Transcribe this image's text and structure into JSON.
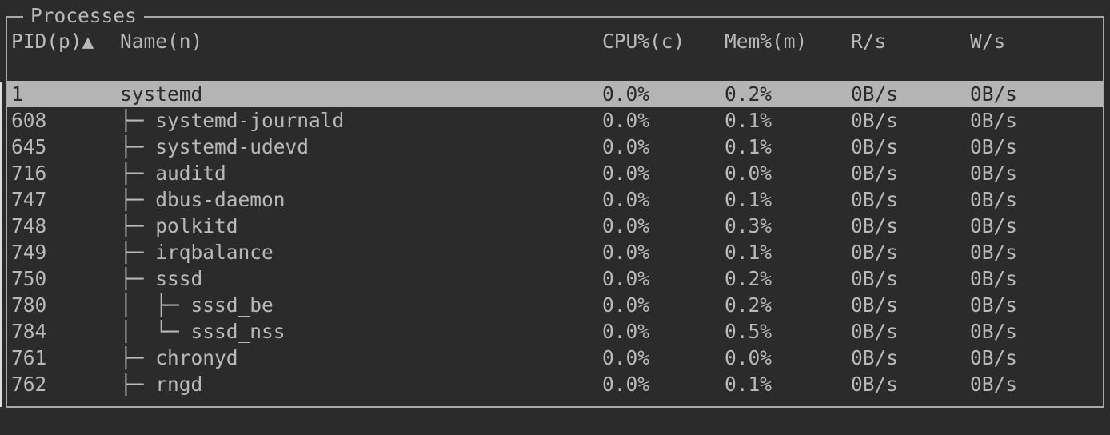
{
  "panel": {
    "title": "Processes"
  },
  "table": {
    "columns": [
      {
        "key": "pid",
        "label": "PID(p)",
        "sort_arrow": "▲"
      },
      {
        "key": "name",
        "label": "Name(n)"
      },
      {
        "key": "cpu",
        "label": "CPU%(c)"
      },
      {
        "key": "mem",
        "label": "Mem%(m)"
      },
      {
        "key": "read",
        "label": "R/s"
      },
      {
        "key": "write",
        "label": "W/s"
      }
    ],
    "rows": [
      {
        "pid": "1",
        "tree_prefix": "",
        "name": "systemd",
        "cpu": "0.0%",
        "mem": "0.2%",
        "read": "0B/s",
        "write": "0B/s",
        "selected": true
      },
      {
        "pid": "608",
        "tree_prefix": "├─ ",
        "name": "systemd-journald",
        "cpu": "0.0%",
        "mem": "0.1%",
        "read": "0B/s",
        "write": "0B/s",
        "selected": false
      },
      {
        "pid": "645",
        "tree_prefix": "├─ ",
        "name": "systemd-udevd",
        "cpu": "0.0%",
        "mem": "0.1%",
        "read": "0B/s",
        "write": "0B/s",
        "selected": false
      },
      {
        "pid": "716",
        "tree_prefix": "├─ ",
        "name": "auditd",
        "cpu": "0.0%",
        "mem": "0.0%",
        "read": "0B/s",
        "write": "0B/s",
        "selected": false
      },
      {
        "pid": "747",
        "tree_prefix": "├─ ",
        "name": "dbus-daemon",
        "cpu": "0.0%",
        "mem": "0.1%",
        "read": "0B/s",
        "write": "0B/s",
        "selected": false
      },
      {
        "pid": "748",
        "tree_prefix": "├─ ",
        "name": "polkitd",
        "cpu": "0.0%",
        "mem": "0.3%",
        "read": "0B/s",
        "write": "0B/s",
        "selected": false
      },
      {
        "pid": "749",
        "tree_prefix": "├─ ",
        "name": "irqbalance",
        "cpu": "0.0%",
        "mem": "0.1%",
        "read": "0B/s",
        "write": "0B/s",
        "selected": false
      },
      {
        "pid": "750",
        "tree_prefix": "├─ ",
        "name": "sssd",
        "cpu": "0.0%",
        "mem": "0.2%",
        "read": "0B/s",
        "write": "0B/s",
        "selected": false
      },
      {
        "pid": "780",
        "tree_prefix": "│  ├─ ",
        "name": "sssd_be",
        "cpu": "0.0%",
        "mem": "0.2%",
        "read": "0B/s",
        "write": "0B/s",
        "selected": false
      },
      {
        "pid": "784",
        "tree_prefix": "│  └─ ",
        "name": "sssd_nss",
        "cpu": "0.0%",
        "mem": "0.5%",
        "read": "0B/s",
        "write": "0B/s",
        "selected": false
      },
      {
        "pid": "761",
        "tree_prefix": "├─ ",
        "name": "chronyd",
        "cpu": "0.0%",
        "mem": "0.0%",
        "read": "0B/s",
        "write": "0B/s",
        "selected": false
      },
      {
        "pid": "762",
        "tree_prefix": "├─ ",
        "name": "rngd",
        "cpu": "0.0%",
        "mem": "0.1%",
        "read": "0B/s",
        "write": "0B/s",
        "selected": false
      }
    ]
  },
  "colors": {
    "background": "#2b2b2b",
    "border": "#a9a9a9",
    "text": "#b9b9b9",
    "selected_background": "#b4b4b4",
    "selected_text": "#2b2b2b"
  }
}
